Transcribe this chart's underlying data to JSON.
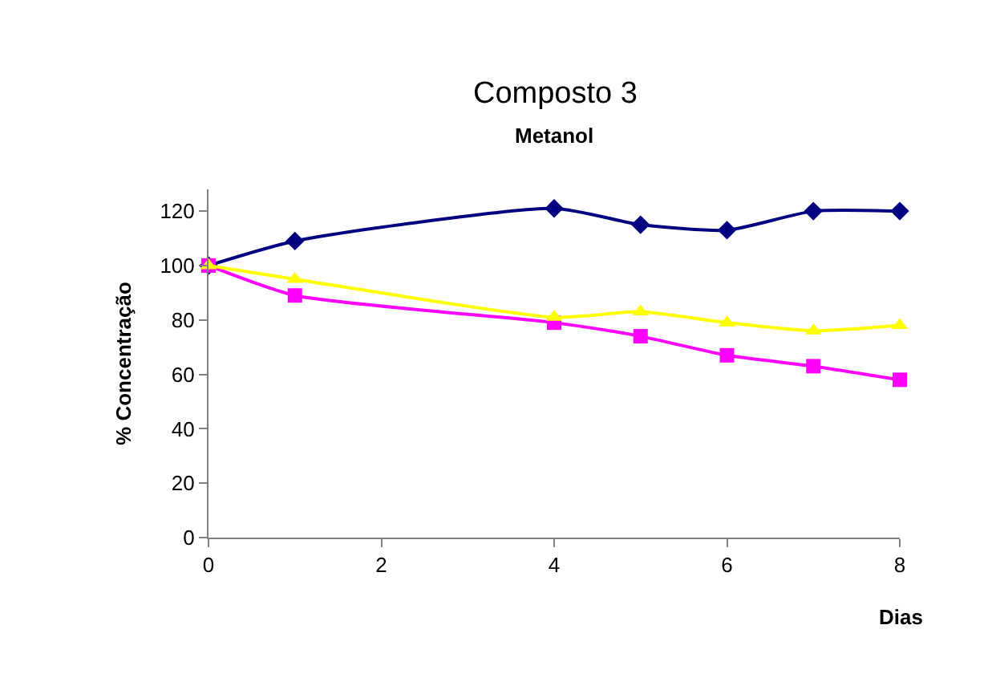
{
  "chart_data": {
    "type": "line",
    "title": "Composto 3",
    "subtitle": "Metanol",
    "xlabel": "Dias",
    "ylabel": "% Concentração",
    "x": [
      0,
      1,
      4,
      5,
      6,
      7,
      8
    ],
    "series": [
      {
        "color": "#000080",
        "marker": "diamond",
        "values": [
          100,
          109,
          121,
          115,
          113,
          120,
          120
        ]
      },
      {
        "color": "#ff00ff",
        "marker": "square",
        "values": [
          100,
          89,
          79,
          74,
          67,
          63,
          58
        ]
      },
      {
        "color": "#ffff00",
        "marker": "triangle",
        "values": [
          100,
          95,
          81,
          83,
          79,
          76,
          78
        ]
      }
    ],
    "xlim": [
      0,
      8
    ],
    "xticks": [
      0,
      2,
      4,
      6,
      8
    ],
    "ylim": [
      0,
      128
    ],
    "yticks": [
      0,
      20,
      40,
      60,
      80,
      100,
      120
    ],
    "line_style": "solid"
  }
}
